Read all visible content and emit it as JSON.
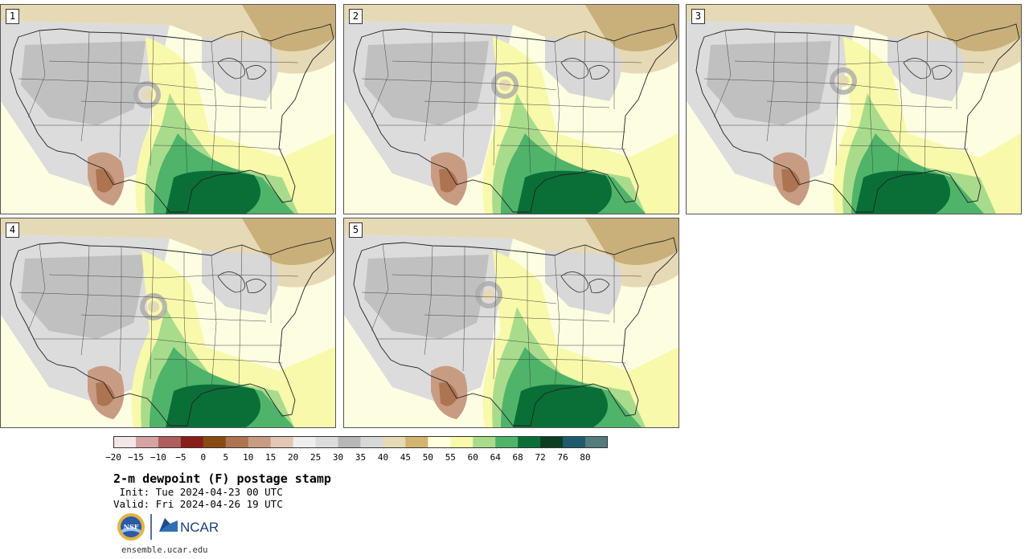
{
  "panels": [
    {
      "label": "1",
      "variant": 1
    },
    {
      "label": "2",
      "variant": 2
    },
    {
      "label": "3",
      "variant": 3
    },
    {
      "label": "4",
      "variant": 4
    },
    {
      "label": "5",
      "variant": 5
    }
  ],
  "colorbar": {
    "colors": [
      "#f3e6e6",
      "#d5a3a3",
      "#b05d5d",
      "#8b1c1c",
      "#8a4b12",
      "#ad7451",
      "#c89c82",
      "#e3c6b6",
      "#eeeeee",
      "#dcdcdc",
      "#b7b7b7",
      "#d8d8d8",
      "#e6d9b5",
      "#d3b46f",
      "#ffffde",
      "#f8f9aa",
      "#a8dc8c",
      "#4fb36a",
      "#0a6f37",
      "#0d3e24",
      "#1d5c6a",
      "#527d7b"
    ],
    "ticks": [
      "−20",
      "−15",
      "−10",
      "−5",
      "0",
      "5",
      "10",
      "15",
      "20",
      "25",
      "30",
      "35",
      "40",
      "45",
      "50",
      "55",
      "60",
      "64",
      "68",
      "72",
      "76",
      "80"
    ]
  },
  "title": "2-m dewpoint (F) postage stamp",
  "init": " Init: Tue 2024-04-23 00 UTC",
  "valid": "Valid: Fri 2024-04-26 19 UTC",
  "logos": {
    "nsf_text": "NSF",
    "ncar_text": "NCAR"
  },
  "url": "ensemble.ucar.edu"
}
